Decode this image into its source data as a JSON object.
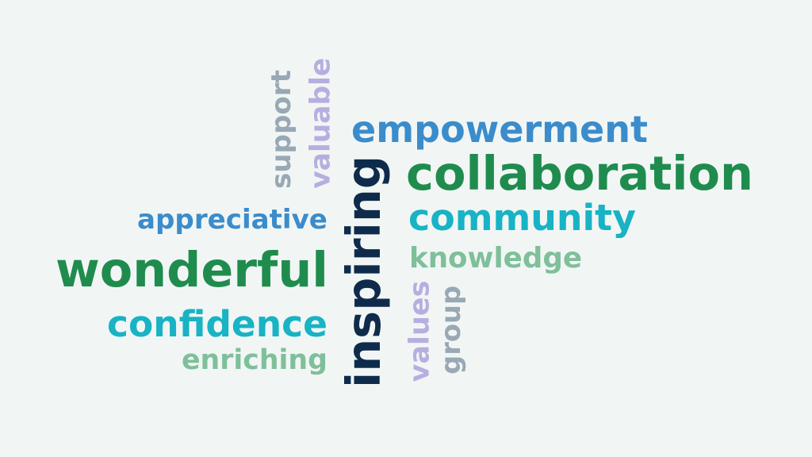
{
  "colors": {
    "background": "#f1f6f5",
    "blue": "#3b8ccb",
    "green": "#1f8c4e",
    "teal": "#18b3c4",
    "light_green": "#7fbf9a",
    "lavender": "#b7aee0",
    "gray": "#98a8b4",
    "navy": "#0f2b4c"
  },
  "words": [
    {
      "id": "empowerment",
      "text": "empowerment",
      "color": "blue",
      "orientation": "horizontal"
    },
    {
      "id": "collaboration",
      "text": "collaboration",
      "color": "green",
      "orientation": "horizontal"
    },
    {
      "id": "community",
      "text": "community",
      "color": "teal",
      "orientation": "horizontal"
    },
    {
      "id": "knowledge",
      "text": "knowledge",
      "color": "light_green",
      "orientation": "horizontal"
    },
    {
      "id": "appreciative",
      "text": "appreciative",
      "color": "blue",
      "orientation": "horizontal"
    },
    {
      "id": "wonderful",
      "text": "wonderful",
      "color": "green",
      "orientation": "horizontal"
    },
    {
      "id": "confidence",
      "text": "confidence",
      "color": "teal",
      "orientation": "horizontal"
    },
    {
      "id": "enriching",
      "text": "enriching",
      "color": "light_green",
      "orientation": "horizontal"
    },
    {
      "id": "support",
      "text": "support",
      "color": "gray",
      "orientation": "vertical"
    },
    {
      "id": "valuable",
      "text": "valuable",
      "color": "lavender",
      "orientation": "vertical"
    },
    {
      "id": "inspiring",
      "text": "inspiring",
      "color": "navy",
      "orientation": "vertical"
    },
    {
      "id": "values",
      "text": "values",
      "color": "lavender",
      "orientation": "vertical"
    },
    {
      "id": "group",
      "text": "group",
      "color": "gray",
      "orientation": "vertical"
    }
  ]
}
